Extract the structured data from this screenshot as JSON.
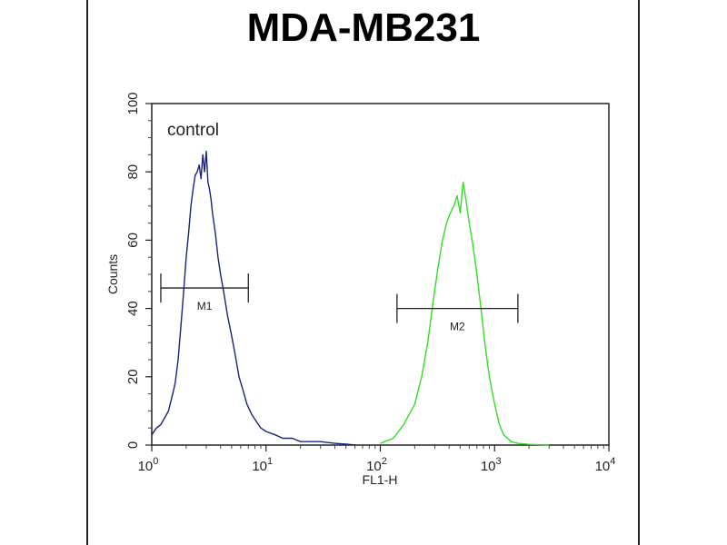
{
  "chart_data": {
    "type": "line",
    "title": "MDA-MB231",
    "xlabel": "FL1-H",
    "ylabel": "Counts",
    "xscale": "log",
    "xlim": [
      1,
      10000
    ],
    "ylim": [
      0,
      100
    ],
    "xticks": [
      {
        "base": "10",
        "exp": "0"
      },
      {
        "base": "10",
        "exp": "1"
      },
      {
        "base": "10",
        "exp": "2"
      },
      {
        "base": "10",
        "exp": "3"
      },
      {
        "base": "10",
        "exp": "4"
      }
    ],
    "yticks": [
      "0",
      "20",
      "40",
      "60",
      "80",
      "100"
    ],
    "annotation": "control",
    "series": [
      {
        "color": "#1a237e",
        "x": [
          1.0,
          1.1,
          1.2,
          1.3,
          1.4,
          1.5,
          1.6,
          1.7,
          1.8,
          1.9,
          2.0,
          2.1,
          2.2,
          2.3,
          2.4,
          2.5,
          2.6,
          2.7,
          2.8,
          2.9,
          3.0,
          3.1,
          3.2,
          3.3,
          3.4,
          3.6,
          3.8,
          4.0,
          4.3,
          4.6,
          5.0,
          5.4,
          5.8,
          6.3,
          6.8,
          7.5,
          8.2,
          9.0,
          10,
          12,
          14,
          17,
          20,
          25,
          30,
          40,
          50,
          60
        ],
        "y": [
          3,
          5,
          6,
          8,
          10,
          14,
          18,
          25,
          35,
          45,
          55,
          62,
          70,
          75,
          79,
          80,
          82,
          78,
          85,
          80,
          86,
          77,
          75,
          72,
          68,
          62,
          55,
          50,
          44,
          38,
          32,
          26,
          20,
          16,
          12,
          9,
          7,
          5,
          4,
          3,
          2,
          2,
          1,
          1,
          1,
          0.5,
          0.3,
          0
        ]
      },
      {
        "color": "#33dd22",
        "x": [
          100,
          130,
          160,
          200,
          230,
          260,
          290,
          320,
          350,
          380,
          410,
          440,
          470,
          500,
          530,
          560,
          600,
          650,
          700,
          760,
          820,
          900,
          1000,
          1100,
          1200,
          1400,
          1600,
          2000,
          3000
        ],
        "y": [
          0.5,
          2,
          6,
          12,
          20,
          30,
          42,
          52,
          60,
          65,
          68,
          70,
          73,
          68,
          77,
          72,
          65,
          58,
          50,
          40,
          30,
          20,
          12,
          6,
          3,
          1,
          0.5,
          0.2,
          0
        ]
      }
    ],
    "gates": [
      {
        "label": "M1",
        "x_start": 1.2,
        "x_end": 7.0,
        "y": 46
      },
      {
        "label": "M2",
        "x_start": 140,
        "x_end": 1600,
        "y": 40
      }
    ]
  }
}
